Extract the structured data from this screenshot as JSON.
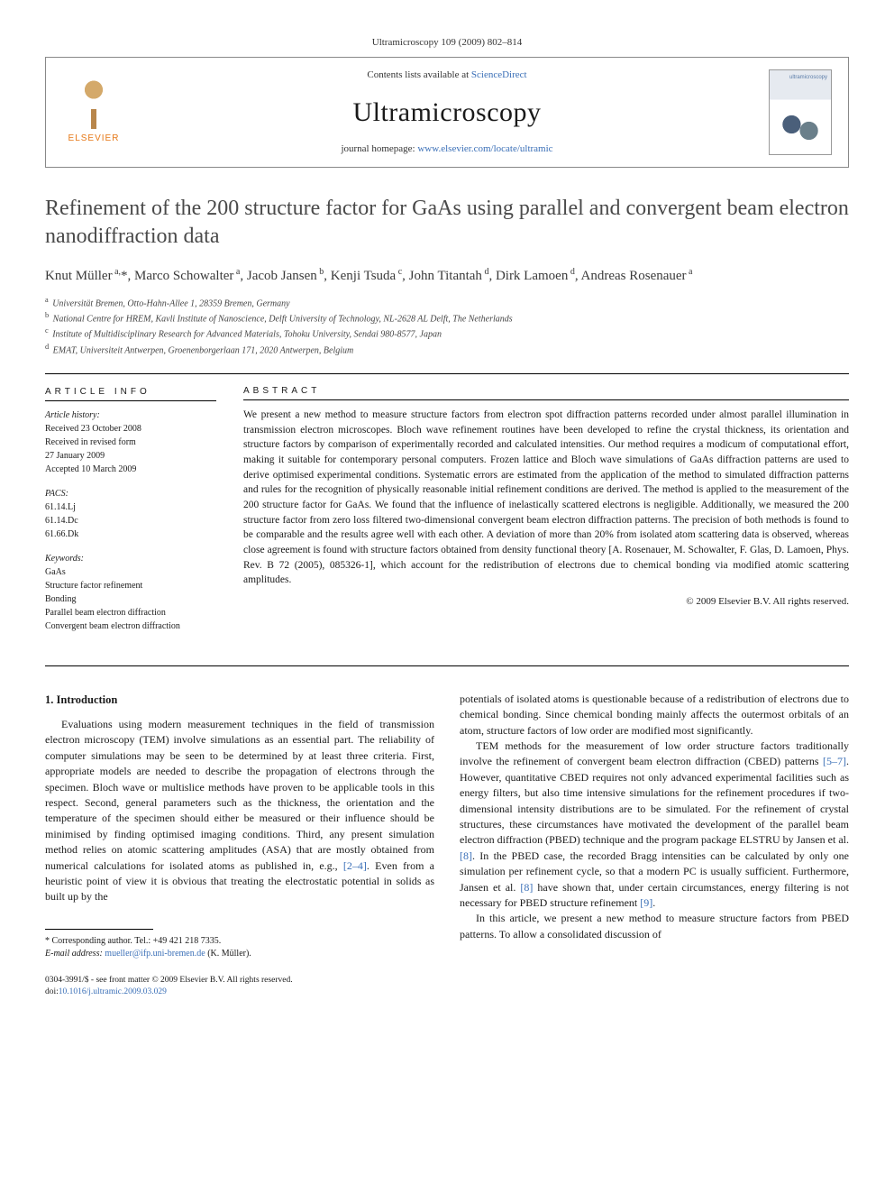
{
  "journal_meta": "Ultramicroscopy 109 (2009) 802–814",
  "header": {
    "elsevier": "ELSEVIER",
    "contents_line_pre": "Contents lists available at ",
    "sciencedirect": "ScienceDirect",
    "journal_name": "Ultramicroscopy",
    "homepage_pre": "journal homepage: ",
    "homepage_url": "www.elsevier.com/locate/ultramic",
    "cover_label": "ultramicroscopy"
  },
  "title": "Refinement of the 200 structure factor for GaAs using parallel and convergent beam electron nanodiffraction data",
  "authors_html": "Knut Müller<sup> a,</sup>*, Marco Schowalter<sup> a</sup>, Jacob Jansen<sup> b</sup>, Kenji Tsuda<sup> c</sup>, John Titantah<sup> d</sup>, Dirk Lamoen<sup> d</sup>, Andreas Rosenauer<sup> a</sup>",
  "affiliations": [
    {
      "sup": "a",
      "text": "Universität Bremen, Otto-Hahn-Allee 1, 28359 Bremen, Germany"
    },
    {
      "sup": "b",
      "text": "National Centre for HREM, Kavli Institute of Nanoscience, Delft University of Technology, NL-2628 AL Delft, The Netherlands"
    },
    {
      "sup": "c",
      "text": "Institute of Multidisciplinary Research for Advanced Materials, Tohoku University, Sendai 980-8577, Japan"
    },
    {
      "sup": "d",
      "text": "EMAT, Universiteit Antwerpen, Groenenborgerlaan 171, 2020 Antwerpen, Belgium"
    }
  ],
  "info": {
    "label": "ARTICLE INFO",
    "history_head": "Article history:",
    "history": [
      "Received 23 October 2008",
      "Received in revised form",
      "27 January 2009",
      "Accepted 10 March 2009"
    ],
    "pacs_head": "PACS:",
    "pacs": [
      "61.14.Lj",
      "61.14.Dc",
      "61.66.Dk"
    ],
    "keywords_head": "Keywords:",
    "keywords": [
      "GaAs",
      "Structure factor refinement",
      "Bonding",
      "Parallel beam electron diffraction",
      "Convergent beam electron diffraction"
    ]
  },
  "abstract": {
    "label": "ABSTRACT",
    "text": "We present a new method to measure structure factors from electron spot diffraction patterns recorded under almost parallel illumination in transmission electron microscopes. Bloch wave refinement routines have been developed to refine the crystal thickness, its orientation and structure factors by comparison of experimentally recorded and calculated intensities. Our method requires a modicum of computational effort, making it suitable for contemporary personal computers. Frozen lattice and Bloch wave simulations of GaAs diffraction patterns are used to derive optimised experimental conditions. Systematic errors are estimated from the application of the method to simulated diffraction patterns and rules for the recognition of physically reasonable initial refinement conditions are derived. The method is applied to the measurement of the 200 structure factor for GaAs. We found that the influence of inelastically scattered electrons is negligible. Additionally, we measured the 200 structure factor from zero loss filtered two-dimensional convergent beam electron diffraction patterns. The precision of both methods is found to be comparable and the results agree well with each other. A deviation of more than 20% from isolated atom scattering data is observed, whereas close agreement is found with structure factors obtained from density functional theory [A. Rosenauer, M. Schowalter, F. Glas, D. Lamoen, Phys. Rev. B 72 (2005), 085326-1], which account for the redistribution of electrons due to chemical bonding via modified atomic scattering amplitudes.",
    "copyright": "© 2009 Elsevier B.V. All rights reserved."
  },
  "body": {
    "sec1_head": "1.  Introduction",
    "left_p1": "Evaluations using modern measurement techniques in the field of transmission electron microscopy (TEM) involve simulations as an essential part. The reliability of computer simulations may be seen to be determined by at least three criteria. First, appropriate models are needed to describe the propagation of electrons through the specimen. Bloch wave or multislice methods have proven to be applicable tools in this respect. Second, general parameters such as the thickness, the orientation and the temperature of the specimen should either be measured or their influence should be minimised by finding optimised imaging conditions. Third, any present simulation method relies on atomic scattering amplitudes (ASA) that are mostly obtained from numerical calculations for isolated atoms as published in, e.g., ",
    "left_ref1": "[2–4]",
    "left_p1b": ". Even from a heuristic point of view it is obvious that treating the electrostatic potential in solids as built up by the",
    "right_p1": "potentials of isolated atoms is questionable because of a redistribution of electrons due to chemical bonding. Since chemical bonding mainly affects the outermost orbitals of an atom, structure factors of low order are modified most significantly.",
    "right_p2a": "TEM methods for the measurement of low order structure factors traditionally involve the refinement of convergent beam electron diffraction (CBED) patterns ",
    "right_ref2": "[5–7]",
    "right_p2b": ". However, quantitative CBED requires not only advanced experimental facilities such as energy filters, but also time intensive simulations for the refinement procedures if two-dimensional intensity distributions are to be simulated. For the refinement of crystal structures, these circumstances have motivated the development of the parallel beam electron diffraction (PBED) technique and the program package ELSTRU by Jansen et al. ",
    "right_ref3": "[8]",
    "right_p2c": ". In the PBED case, the recorded Bragg intensities can be calculated by only one simulation per refinement cycle, so that a modern PC is usually sufficient. Furthermore, Jansen et al. ",
    "right_ref4": "[8]",
    "right_p2d": " have shown that, under certain circumstances, energy filtering is not necessary for PBED structure refinement ",
    "right_ref5": "[9]",
    "right_p2e": ".",
    "right_p3": "In this article, we present a new method to measure structure factors from PBED patterns. To allow a consolidated discussion of"
  },
  "footnote": {
    "corr": "* Corresponding author. Tel.: +49 421 218 7335.",
    "email_label": "E-mail address: ",
    "email": "mueller@ifp.uni-bremen.de",
    "email_who": " (K. Müller)."
  },
  "footer": {
    "line1": "0304-3991/$ - see front matter © 2009 Elsevier B.V. All rights reserved.",
    "doi_pre": "doi:",
    "doi": "10.1016/j.ultramic.2009.03.029"
  },
  "colors": {
    "link": "#3a6fb7",
    "elsevier_orange": "#e67817",
    "text": "#1a1a1a"
  }
}
